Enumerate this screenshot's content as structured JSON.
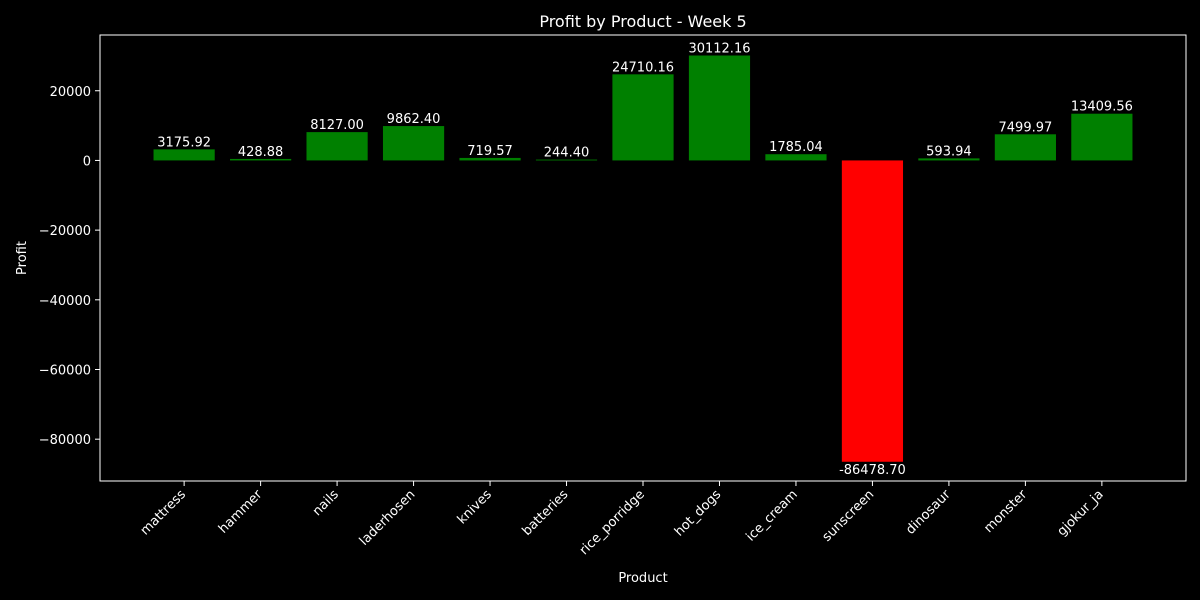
{
  "chart_data": {
    "type": "bar",
    "title": "Profit by Product - Week 5",
    "xlabel": "Product",
    "ylabel": "Profit",
    "categories": [
      "mattress",
      "hammer",
      "nails",
      "laderhosen",
      "knives",
      "batteries",
      "rice_porridge",
      "hot_dogs",
      "ice_cream",
      "sunscreen",
      "dinosaur",
      "monster",
      "gjokur_ja"
    ],
    "values": [
      3175.92,
      428.88,
      8127.0,
      9862.4,
      719.57,
      244.4,
      24710.16,
      30112.16,
      1785.04,
      -86478.7,
      593.94,
      7499.97,
      13409.56
    ],
    "value_labels": [
      "3175.92",
      "428.88",
      "8127.00",
      "9862.40",
      "719.57",
      "244.40",
      "24710.16",
      "30112.16",
      "1785.04",
      "-86478.70",
      "593.94",
      "7499.97",
      "13409.56"
    ],
    "ylim": [
      -92000,
      36000
    ],
    "yticks": [
      -80000,
      -60000,
      -40000,
      -20000,
      0,
      20000
    ],
    "ytick_labels": [
      "−80000",
      "−60000",
      "−40000",
      "−20000",
      "0",
      "20000"
    ],
    "positive_color": "#008000",
    "negative_color": "#ff0000",
    "background": "#000000",
    "foreground": "#ffffff",
    "grid": false,
    "legend": "none"
  }
}
